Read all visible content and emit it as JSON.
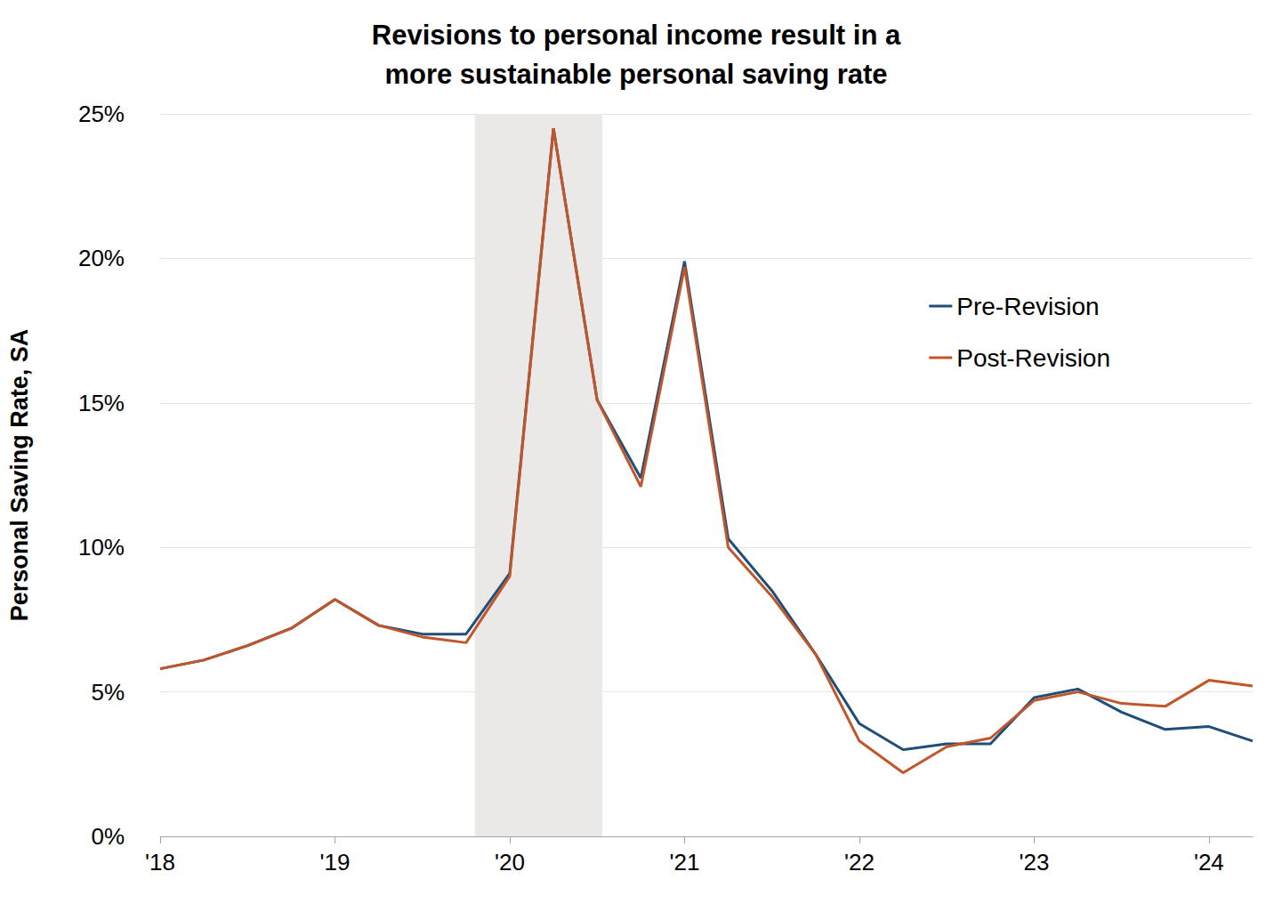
{
  "chart_data": {
    "type": "line",
    "title": "Revisions to personal income result in a\nmore sustainable personal saving rate",
    "y_label": "Personal Saving Rate, SA",
    "x": [
      2018,
      2018.25,
      2018.5,
      2018.75,
      2019,
      2019.25,
      2019.5,
      2019.75,
      2020,
      2020.25,
      2020.5,
      2020.75,
      2021,
      2021.25,
      2021.5,
      2021.75,
      2022,
      2022.25,
      2022.5,
      2022.75,
      2023,
      2023.25,
      2023.5,
      2023.75,
      2024,
      2024.25
    ],
    "series": [
      {
        "name": "Pre-Revision",
        "color": "#1f4e79",
        "values": [
          5.8,
          6.1,
          6.6,
          7.2,
          8.2,
          7.3,
          7.0,
          7.0,
          9.1,
          24.5,
          15.1,
          12.4,
          19.9,
          10.3,
          8.5,
          6.3,
          3.9,
          3.0,
          3.2,
          3.2,
          4.8,
          5.1,
          4.3,
          3.7,
          3.8,
          3.3
        ]
      },
      {
        "name": "Post-Revision",
        "color": "#c0562a",
        "values": [
          5.8,
          6.1,
          6.6,
          7.2,
          8.2,
          7.3,
          6.9,
          6.7,
          9.0,
          24.5,
          15.1,
          12.1,
          19.7,
          10.0,
          8.3,
          6.3,
          3.3,
          2.2,
          3.1,
          3.4,
          4.7,
          5.0,
          4.6,
          4.5,
          5.4,
          5.2
        ]
      }
    ],
    "shaded_range": [
      2019.8,
      2020.53
    ],
    "xlim": [
      2018,
      2024.25
    ],
    "xticks": [
      {
        "value": 2018,
        "label": "'18"
      },
      {
        "value": 2019,
        "label": "'19"
      },
      {
        "value": 2020,
        "label": "'20"
      },
      {
        "value": 2021,
        "label": "'21"
      },
      {
        "value": 2022,
        "label": "'22"
      },
      {
        "value": 2023,
        "label": "'23"
      },
      {
        "value": 2024,
        "label": "'24"
      }
    ],
    "ylim": [
      0,
      25
    ],
    "yticks": [
      {
        "value": 0,
        "label": "0%"
      },
      {
        "value": 5,
        "label": "5%"
      },
      {
        "value": 10,
        "label": "10%"
      },
      {
        "value": 15,
        "label": "15%"
      },
      {
        "value": 20,
        "label": "20%"
      },
      {
        "value": 25,
        "label": "25%"
      }
    ],
    "grid": true,
    "legend": "upper right"
  }
}
